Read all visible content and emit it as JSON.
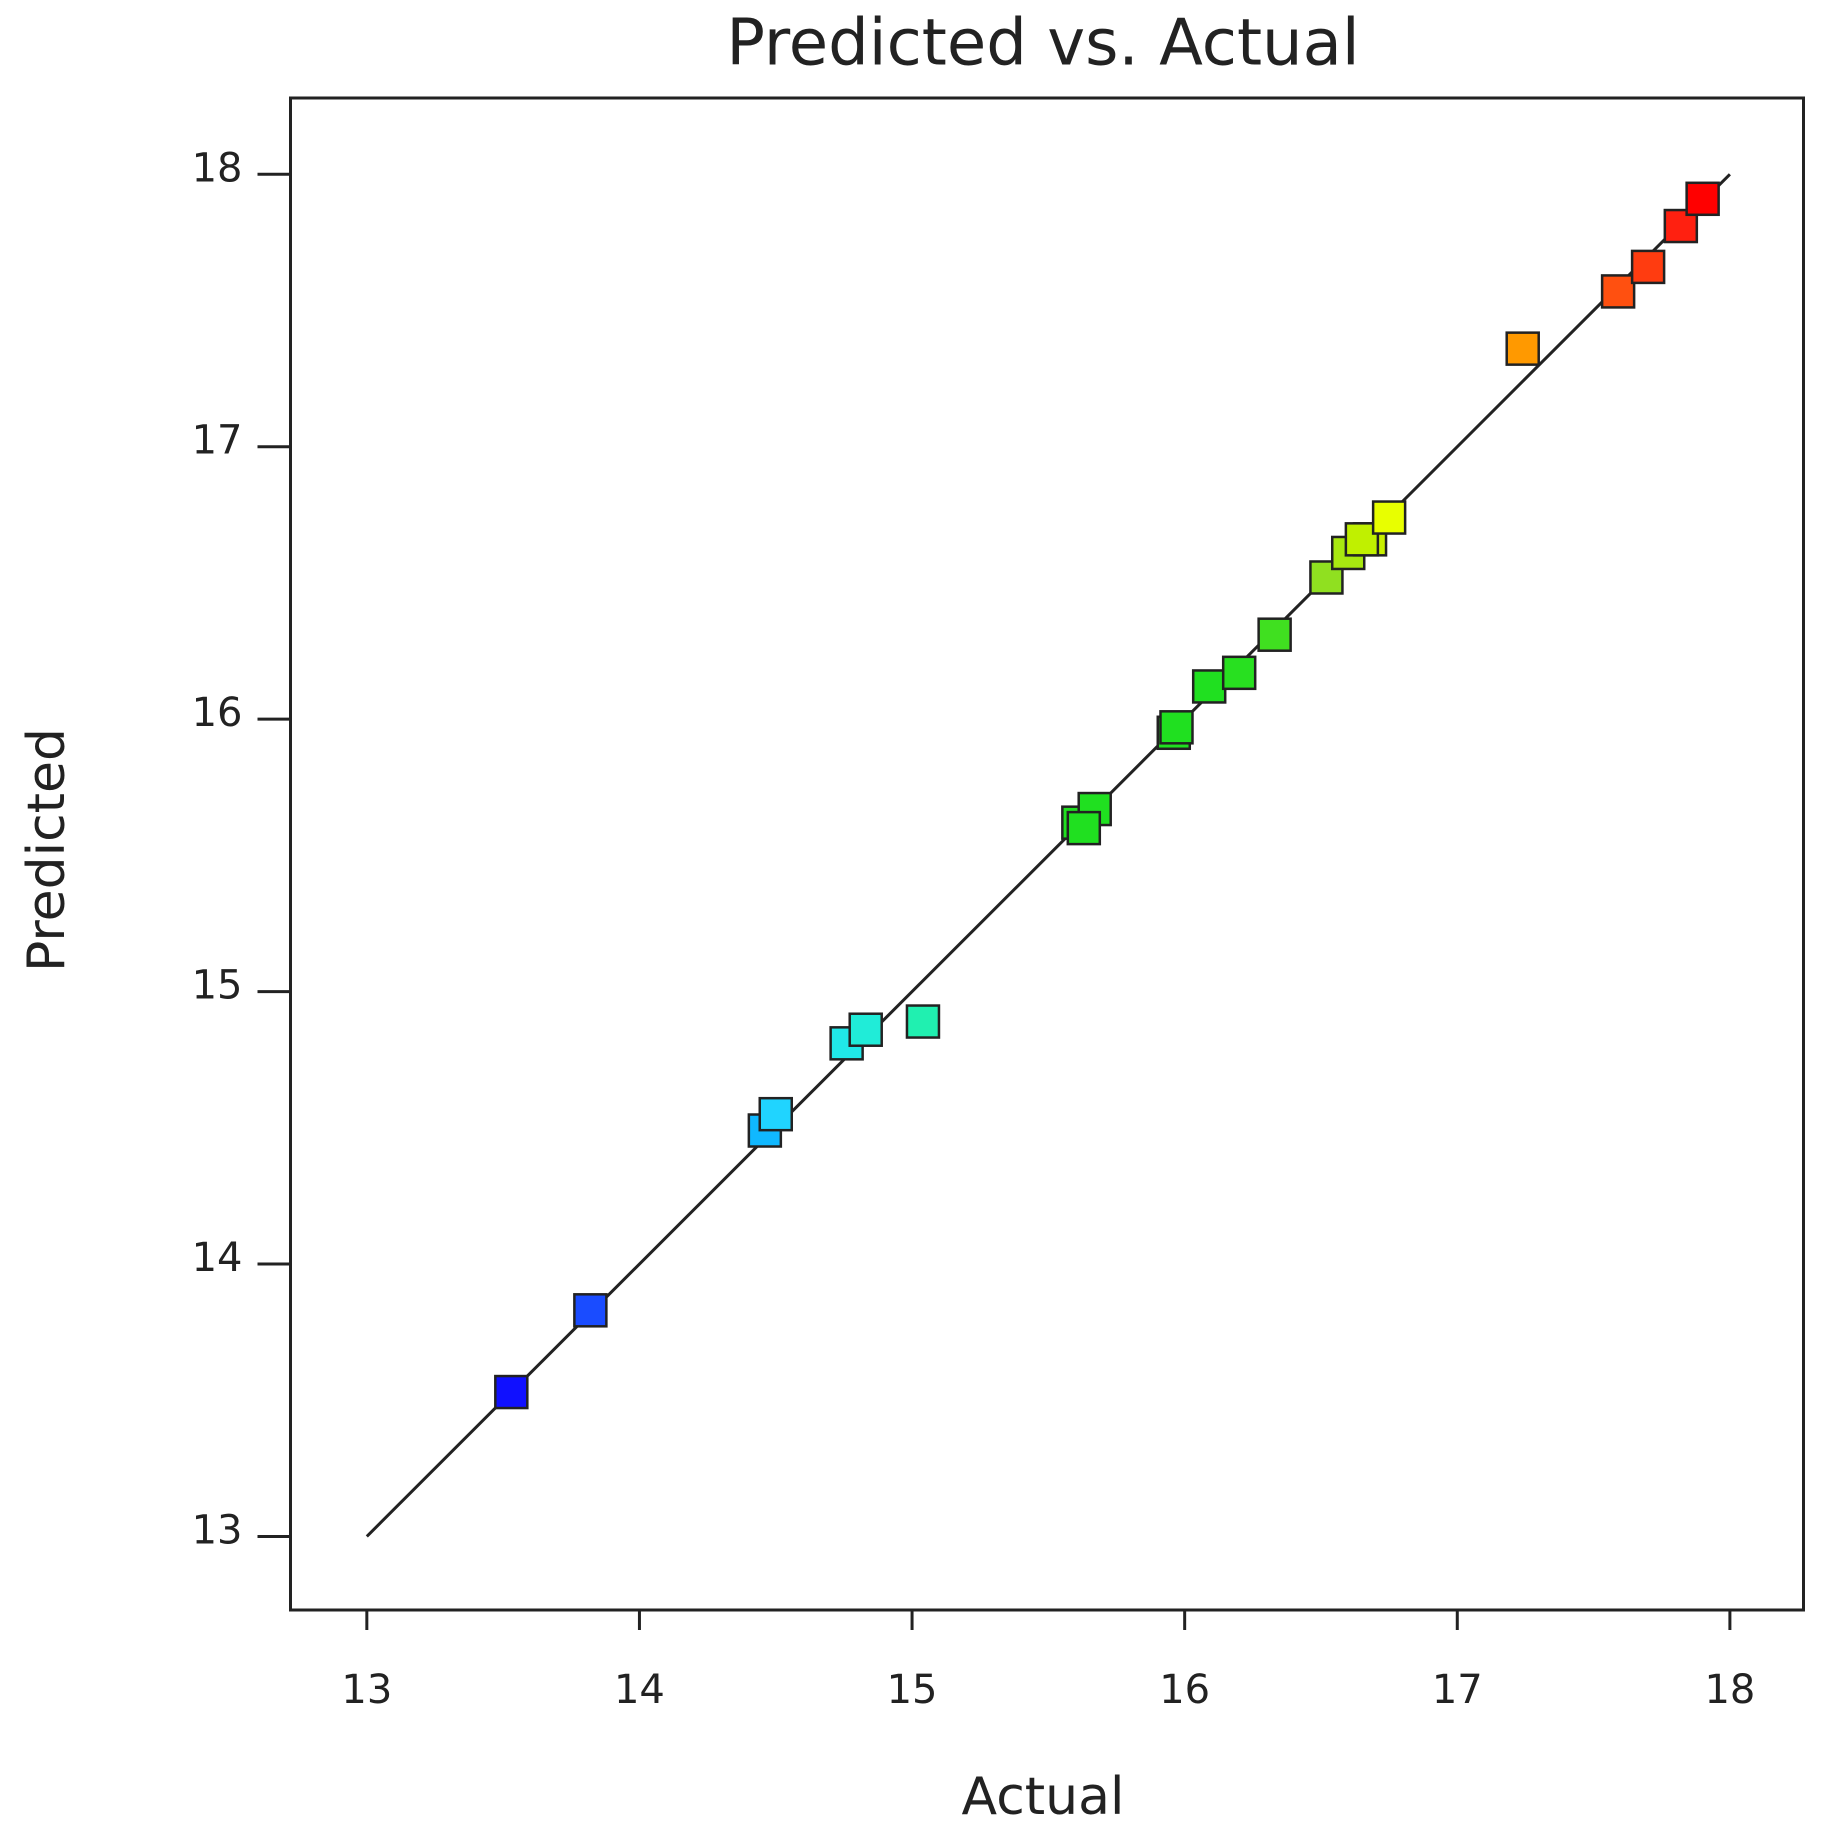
{
  "chart_data": {
    "type": "scatter",
    "title": "Predicted vs. Actual",
    "x_label": "Actual",
    "y_label": "Predicted",
    "xlim": [
      12.72,
      18.27
    ],
    "ylim": [
      12.73,
      18.28
    ],
    "xticks": [
      13,
      14,
      15,
      16,
      17,
      18
    ],
    "yticks": [
      13,
      14,
      15,
      16,
      17,
      18
    ],
    "grid": false,
    "reference_line": {
      "x": [
        13,
        18
      ],
      "y": [
        13,
        18
      ],
      "color": "#222222"
    },
    "series": [
      {
        "x": [
          13.53,
          13.82,
          14.46,
          14.5,
          14.76,
          14.83,
          15.04,
          15.61,
          15.67,
          15.63,
          15.96,
          15.97,
          16.09,
          16.2,
          16.33,
          16.52,
          16.6,
          16.68,
          16.65,
          16.75,
          17.24,
          17.59,
          17.7,
          17.82,
          17.9
        ],
        "values": [
          13.53,
          13.83,
          14.49,
          14.55,
          14.81,
          14.86,
          14.89,
          15.62,
          15.67,
          15.6,
          15.95,
          15.97,
          16.12,
          16.17,
          16.31,
          16.52,
          16.61,
          16.66,
          16.66,
          16.74,
          17.36,
          17.57,
          17.66,
          17.81,
          17.91
        ],
        "colors": [
          "#1010ff",
          "#1a4cff",
          "#10b8ff",
          "#20d4ff",
          "#20e8e8",
          "#20ecd8",
          "#20f0b0",
          "#20e020",
          "#20e020",
          "#20e020",
          "#20e020",
          "#20e020",
          "#20e020",
          "#28e020",
          "#40e020",
          "#90e020",
          "#a8e810",
          "#c8f000",
          "#c0f000",
          "#e8ff00",
          "#ff9900",
          "#ff5010",
          "#ff3c10",
          "#ff2010",
          "#ff0000"
        ]
      }
    ]
  }
}
